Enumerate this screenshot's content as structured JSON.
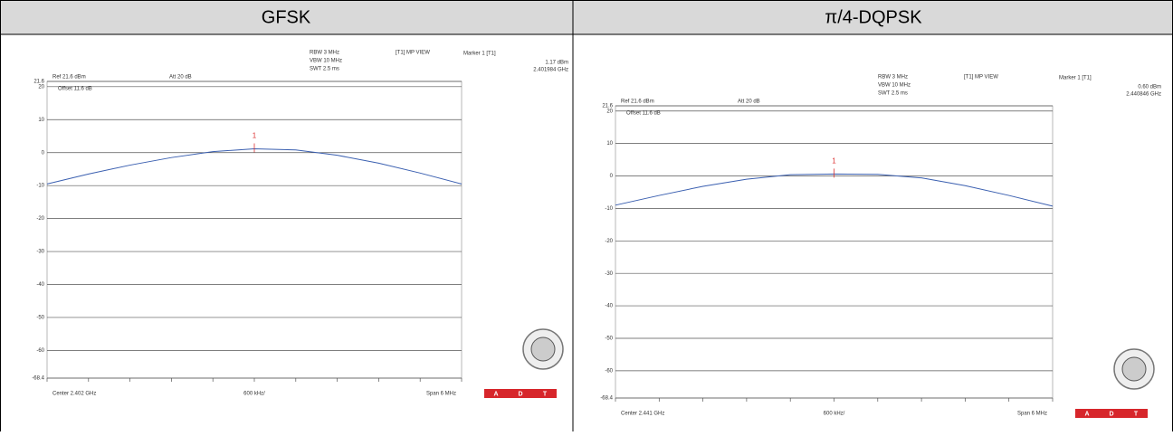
{
  "table": {
    "headers": [
      "GFSK",
      "π/4-DQPSK"
    ]
  },
  "chart_data": [
    {
      "type": "line",
      "rbw": "RBW 3 MHz",
      "vbw": "VBW 10 MHz",
      "swt": "SWT 2.5 ms",
      "trace_mode": "[T1] MP VIEW",
      "marker_title": "Marker 1 [T1]",
      "marker_level": "1.17 dBm",
      "marker_freq": "2.401984 GHz",
      "ref": "Ref 21.6 dBm",
      "att": "Att 20 dB",
      "offset": "Offset 11.6 dB",
      "center": "Center 2.402 GHz",
      "div": "600 kHz/",
      "span": "Span 6 MHz",
      "marker_label": "1",
      "logo": [
        "A",
        "D",
        "T"
      ],
      "categories": [
        null,
        null,
        null,
        null,
        null,
        null,
        null,
        null,
        null,
        null,
        null
      ],
      "series": [
        {
          "color": "#3a5fb0",
          "values": [
            -9.5,
            -6.5,
            -3.8,
            -1.5,
            0.3,
            1.17,
            0.8,
            -0.8,
            -3.2,
            -6.2,
            -9.5
          ]
        }
      ],
      "ylim": [
        -68.4,
        21.6
      ],
      "yticks": [
        21.6,
        20,
        10,
        0,
        -10,
        -20,
        -30,
        -40,
        -50,
        -60,
        -68.4
      ],
      "grid": true
    },
    {
      "type": "line",
      "rbw": "RBW 3 MHz",
      "vbw": "VBW 10 MHz",
      "swt": "SWT 2.5 ms",
      "trace_mode": "[T1] MP VIEW",
      "marker_title": "Marker 1 [T1]",
      "marker_level": "0.60 dBm",
      "marker_freq": "2.440846 GHz",
      "ref": "Ref 21.6 dBm",
      "att": "Att 20 dB",
      "offset": "Offset 11.6 dB",
      "center": "Center 2.441 GHz",
      "div": "600 kHz/",
      "span": "Span 6 MHz",
      "marker_label": "1",
      "logo": [
        "A",
        "D",
        "T"
      ],
      "categories": [
        null,
        null,
        null,
        null,
        null,
        null,
        null,
        null,
        null,
        null,
        null
      ],
      "series": [
        {
          "color": "#3a5fb0",
          "values": [
            -9,
            -6,
            -3.2,
            -1,
            0.4,
            0.6,
            0.5,
            -0.6,
            -3,
            -6,
            -9.3
          ]
        }
      ],
      "ylim": [
        -68.4,
        21.6
      ],
      "yticks": [
        21.6,
        20,
        10,
        0,
        -10,
        -20,
        -30,
        -40,
        -50,
        -60,
        -68.4
      ],
      "grid": true
    }
  ]
}
